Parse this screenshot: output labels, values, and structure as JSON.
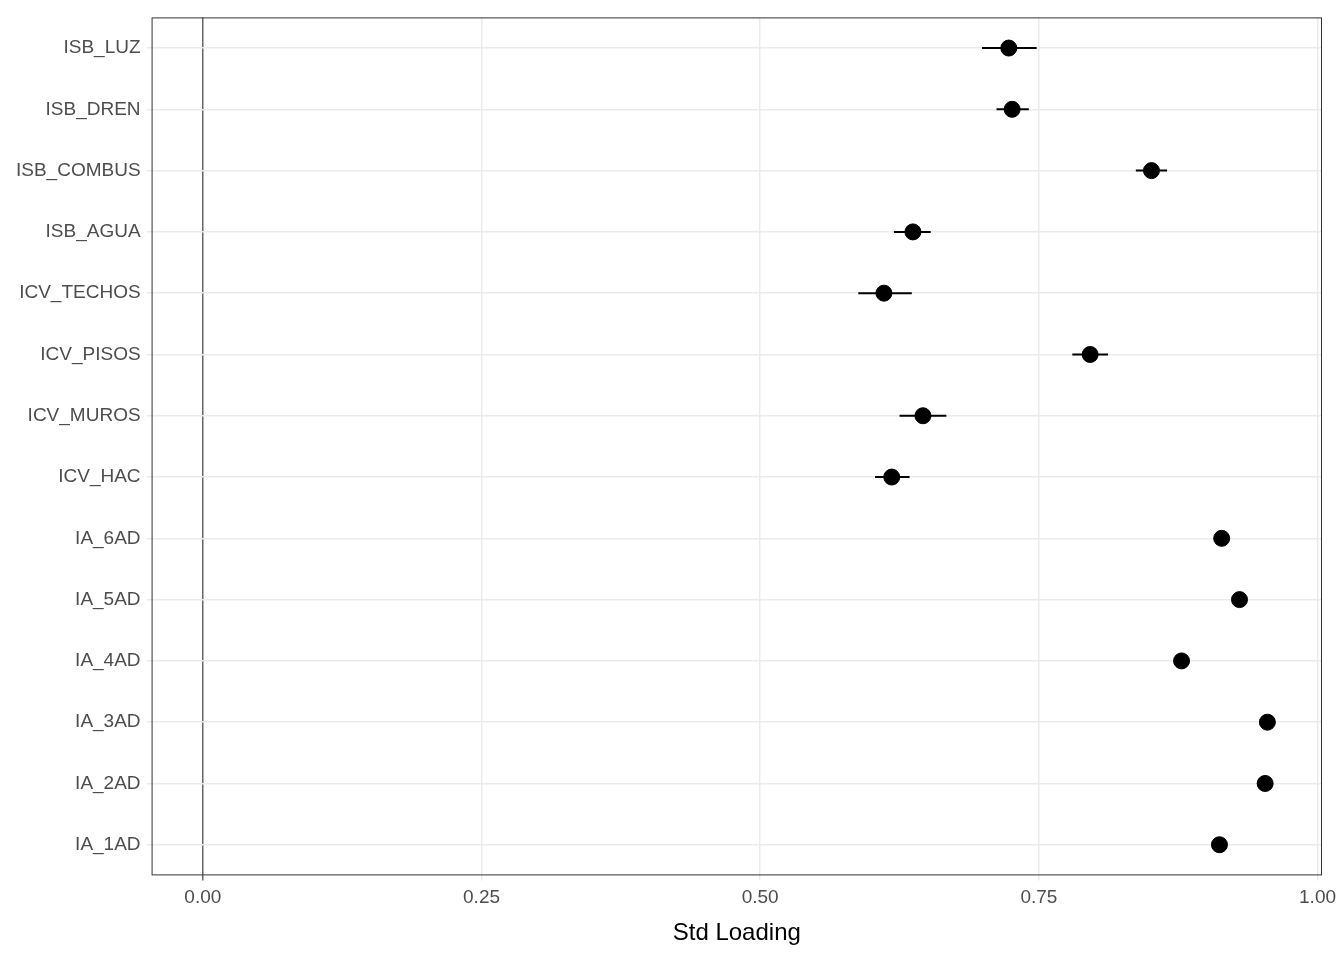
{
  "chart_data": {
    "type": "scatter",
    "orientation": "horizontal",
    "x_label": "Std Loading",
    "categories": [
      "ISB_LUZ",
      "ISB_DREN",
      "ISB_COMBUS",
      "ISB_AGUA",
      "ICV_TECHOS",
      "ICV_PISOS",
      "ICV_MUROS",
      "ICV_HAC",
      "IA_6AD",
      "IA_5AD",
      "IA_4AD",
      "IA_3AD",
      "IA_2AD",
      "IA_1AD"
    ],
    "values": [
      0.723,
      0.726,
      0.851,
      0.637,
      0.611,
      0.796,
      0.646,
      0.618,
      0.914,
      0.93,
      0.878,
      0.955,
      0.953,
      0.912
    ],
    "lower": [
      0.699,
      0.712,
      0.837,
      0.62,
      0.588,
      0.78,
      0.625,
      0.603,
      0.91,
      0.926,
      0.874,
      0.951,
      0.949,
      0.908
    ],
    "upper": [
      0.748,
      0.741,
      0.865,
      0.653,
      0.636,
      0.812,
      0.667,
      0.634,
      0.918,
      0.934,
      0.882,
      0.959,
      0.957,
      0.916
    ],
    "color": "#000000",
    "marker": "circle",
    "xlim": [
      -0.046,
      1.004
    ],
    "xticks": [
      {
        "value": 0,
        "label": "0.00"
      },
      {
        "value": 0.25,
        "label": "0.25"
      },
      {
        "value": 0.5,
        "label": "0.50"
      },
      {
        "value": 0.75,
        "label": "0.75"
      },
      {
        "value": 1,
        "label": "1.00"
      }
    ],
    "grid": true
  }
}
